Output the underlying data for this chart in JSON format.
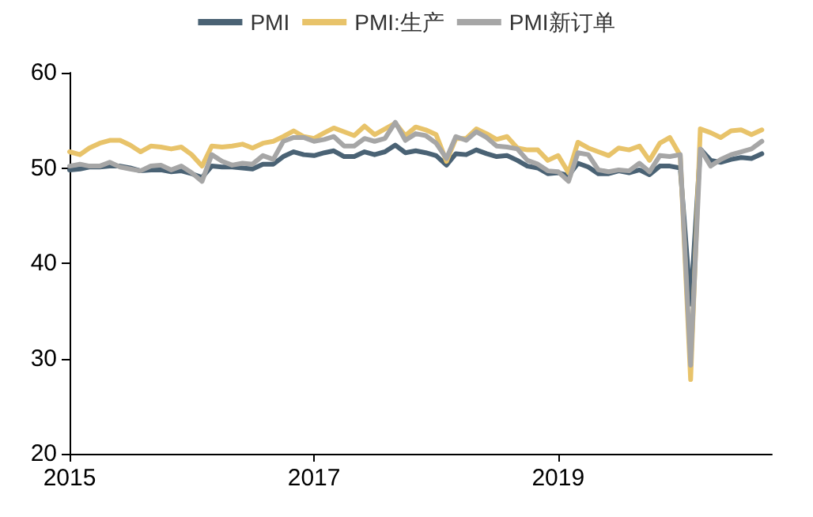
{
  "chart_data": {
    "type": "line",
    "x": [
      "2015-01",
      "2015-02",
      "2015-03",
      "2015-04",
      "2015-05",
      "2015-06",
      "2015-07",
      "2015-08",
      "2015-09",
      "2015-10",
      "2015-11",
      "2015-12",
      "2016-01",
      "2016-02",
      "2016-03",
      "2016-04",
      "2016-05",
      "2016-06",
      "2016-07",
      "2016-08",
      "2016-09",
      "2016-10",
      "2016-11",
      "2016-12",
      "2017-01",
      "2017-02",
      "2017-03",
      "2017-04",
      "2017-05",
      "2017-06",
      "2017-07",
      "2017-08",
      "2017-09",
      "2017-10",
      "2017-11",
      "2017-12",
      "2018-01",
      "2018-02",
      "2018-03",
      "2018-04",
      "2018-05",
      "2018-06",
      "2018-07",
      "2018-08",
      "2018-09",
      "2018-10",
      "2018-11",
      "2018-12",
      "2019-01",
      "2019-02",
      "2019-03",
      "2019-04",
      "2019-05",
      "2019-06",
      "2019-07",
      "2019-08",
      "2019-09",
      "2019-10",
      "2019-11",
      "2019-12",
      "2020-01",
      "2020-02",
      "2020-03",
      "2020-04",
      "2020-05",
      "2020-06",
      "2020-07",
      "2020-08",
      "2020-09"
    ],
    "series": [
      {
        "name": "PMI",
        "color": "#4a6274",
        "values": [
          49.8,
          49.9,
          50.1,
          50.1,
          50.2,
          50.2,
          50.0,
          49.7,
          49.8,
          49.8,
          49.6,
          49.7,
          49.4,
          49.0,
          50.2,
          50.1,
          50.1,
          50.0,
          49.9,
          50.4,
          50.4,
          51.2,
          51.7,
          51.4,
          51.3,
          51.6,
          51.8,
          51.2,
          51.2,
          51.7,
          51.4,
          51.7,
          52.4,
          51.6,
          51.8,
          51.6,
          51.3,
          50.3,
          51.5,
          51.4,
          51.9,
          51.5,
          51.2,
          51.3,
          50.8,
          50.2,
          50.0,
          49.4,
          49.5,
          49.2,
          50.5,
          50.1,
          49.4,
          49.4,
          49.7,
          49.5,
          49.8,
          49.3,
          50.2,
          50.2,
          50.0,
          35.7,
          52.0,
          50.8,
          50.6,
          50.9,
          51.1,
          51.0,
          51.5
        ]
      },
      {
        "name": "PMI:生产",
        "color": "#e8c36a",
        "values": [
          51.7,
          51.4,
          52.1,
          52.6,
          52.9,
          52.9,
          52.4,
          51.7,
          52.3,
          52.2,
          52.0,
          52.2,
          51.4,
          50.2,
          52.3,
          52.2,
          52.3,
          52.5,
          52.1,
          52.6,
          52.8,
          53.3,
          53.9,
          53.3,
          53.1,
          53.7,
          54.2,
          53.8,
          53.4,
          54.4,
          53.5,
          54.1,
          54.7,
          53.4,
          54.3,
          54.0,
          53.5,
          50.7,
          53.1,
          53.1,
          54.1,
          53.6,
          53.0,
          53.3,
          52.1,
          51.9,
          51.9,
          50.8,
          51.3,
          49.5,
          52.7,
          52.1,
          51.7,
          51.3,
          52.1,
          51.9,
          52.3,
          50.8,
          52.6,
          53.2,
          51.3,
          27.8,
          54.1,
          53.7,
          53.2,
          53.9,
          54.0,
          53.5,
          54.0
        ]
      },
      {
        "name": "PMI新订单",
        "color": "#a6a6a6",
        "values": [
          50.2,
          50.4,
          50.2,
          50.2,
          50.6,
          50.1,
          49.9,
          49.7,
          50.2,
          50.3,
          49.8,
          50.2,
          49.5,
          48.6,
          51.4,
          50.7,
          50.3,
          50.5,
          50.4,
          51.3,
          50.9,
          52.8,
          53.2,
          53.2,
          52.8,
          53.0,
          53.3,
          52.3,
          52.3,
          53.1,
          52.8,
          53.1,
          54.8,
          52.9,
          53.6,
          53.4,
          52.6,
          51.0,
          53.3,
          52.9,
          53.8,
          53.2,
          52.3,
          52.2,
          52.0,
          50.8,
          50.4,
          49.7,
          49.6,
          48.6,
          51.6,
          51.4,
          49.8,
          49.6,
          49.8,
          49.7,
          50.5,
          49.6,
          51.3,
          51.2,
          51.4,
          29.3,
          52.0,
          50.2,
          50.9,
          51.4,
          51.7,
          52.0,
          52.8
        ]
      }
    ],
    "xlim": [
      "2015-01",
      "2020-10"
    ],
    "xticks": [
      "2015",
      "2017",
      "2019"
    ],
    "ylim": [
      20,
      60
    ],
    "yticks": [
      20,
      30,
      40,
      50,
      60
    ],
    "grid": false,
    "legend": "top",
    "marker": "none",
    "line_style": "solid"
  }
}
